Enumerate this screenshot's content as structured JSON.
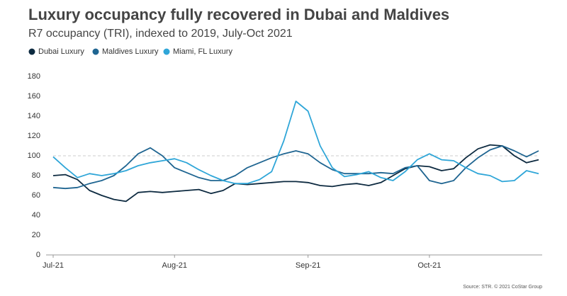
{
  "chart_data": {
    "type": "line",
    "title": "Luxury occupancy fully recovered in Dubai and Maldives",
    "subtitle": "R7 occupancy (TRI), indexed to 2019, July-Oct 2021",
    "source": "Source: STR. © 2021 CoStar Group",
    "categories": [
      "Jul-21",
      null,
      null,
      null,
      null,
      null,
      null,
      null,
      null,
      null,
      "Aug-21",
      null,
      null,
      null,
      null,
      null,
      null,
      null,
      null,
      null,
      null,
      "Sep-21",
      null,
      null,
      null,
      null,
      null,
      null,
      null,
      null,
      null,
      "Oct-21",
      null,
      null,
      null,
      null,
      null,
      null,
      null,
      null,
      null
    ],
    "series": [
      {
        "name": "Dubai Luxury",
        "color": "#0d2a40",
        "values": [
          80,
          81,
          76,
          65,
          60,
          56,
          54,
          63,
          64,
          63,
          64,
          65,
          66,
          62,
          65,
          72,
          71,
          72,
          73,
          74,
          74,
          73,
          70,
          69,
          71,
          72,
          70,
          73,
          80,
          87,
          90,
          89,
          85,
          87,
          98,
          107,
          111,
          110,
          100,
          93,
          96
        ]
      },
      {
        "name": "Maldives Luxury",
        "color": "#1f6591",
        "values": [
          68,
          67,
          68,
          72,
          75,
          80,
          90,
          102,
          108,
          100,
          88,
          83,
          78,
          75,
          75,
          80,
          88,
          93,
          98,
          102,
          105,
          102,
          93,
          86,
          82,
          82,
          82,
          83,
          82,
          88,
          90,
          75,
          72,
          75,
          88,
          98,
          106,
          110,
          105,
          99,
          105
        ]
      },
      {
        "name": "Miami, FL Luxury",
        "color": "#2fa6d8",
        "values": [
          99,
          88,
          78,
          82,
          80,
          82,
          85,
          90,
          93,
          95,
          97,
          93,
          86,
          80,
          75,
          72,
          72,
          76,
          84,
          115,
          155,
          145,
          110,
          88,
          79,
          81,
          84,
          78,
          75,
          84,
          96,
          102,
          96,
          95,
          88,
          82,
          80,
          74,
          75,
          85,
          82
        ]
      }
    ],
    "ylim": [
      0,
      180
    ],
    "yticks": [
      0,
      20,
      40,
      60,
      80,
      100,
      120,
      140,
      160,
      180
    ],
    "reference_line": 100,
    "legend": "top-left"
  }
}
